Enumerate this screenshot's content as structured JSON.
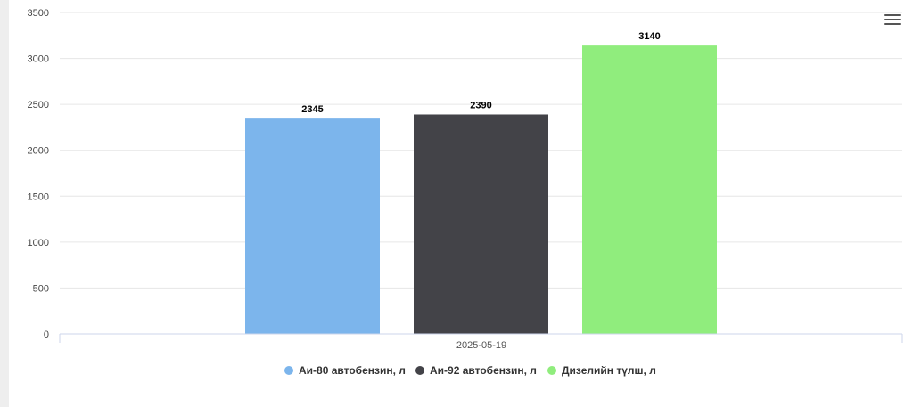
{
  "chart_data": {
    "type": "bar",
    "categories": [
      "2025-05-19"
    ],
    "series": [
      {
        "name": "Аи-80 автобензин, л",
        "values": [
          2345
        ],
        "color": "#7cb5ec"
      },
      {
        "name": "Аи-92 автобензин, л",
        "values": [
          2390
        ],
        "color": "#434348"
      },
      {
        "name": "Дизелийн түлш, л",
        "values": [
          3140
        ],
        "color": "#90ed7d"
      }
    ],
    "yticks": [
      "0",
      "500",
      "1000",
      "1500",
      "2000",
      "2500",
      "3000",
      "3500"
    ],
    "ylim": [
      0,
      3500
    ],
    "grid": true,
    "legend_position": "bottom-center",
    "data_labels": [
      "2345",
      "2390",
      "3140"
    ]
  },
  "toolbar": {
    "menu_icon": "hamburger-menu-icon"
  }
}
